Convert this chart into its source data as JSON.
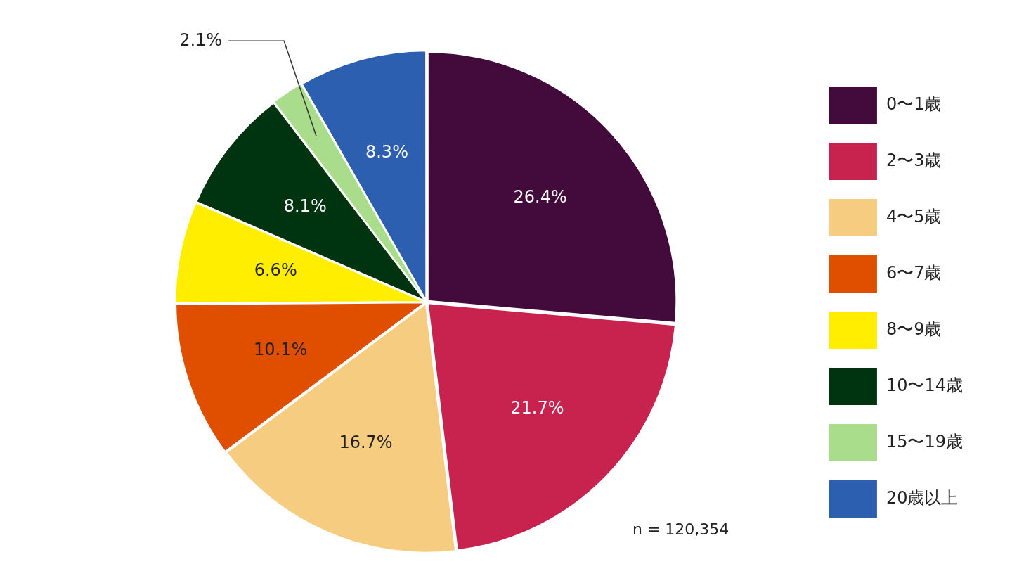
{
  "chart_data": {
    "type": "pie",
    "categories": [
      "0〜1歳",
      "2〜3歳",
      "4〜5歳",
      "6〜7歳",
      "8〜9歳",
      "10〜14歳",
      "15〜19歳",
      "20歳以上"
    ],
    "values": [
      26.4,
      21.7,
      16.7,
      10.1,
      6.6,
      8.1,
      2.1,
      8.3
    ],
    "value_labels": [
      "26.4%",
      "21.7%",
      "16.7%",
      "10.1%",
      "6.6%",
      "8.1%",
      "2.1%",
      "8.3%"
    ],
    "colors": [
      "#430a3c",
      "#c8234f",
      "#f5cc80",
      "#e04e00",
      "#ffee00",
      "#00330f",
      "#a9dc8b",
      "#2d5fb0"
    ],
    "legend": "right",
    "annotations": [
      "n = 120,354"
    ]
  }
}
